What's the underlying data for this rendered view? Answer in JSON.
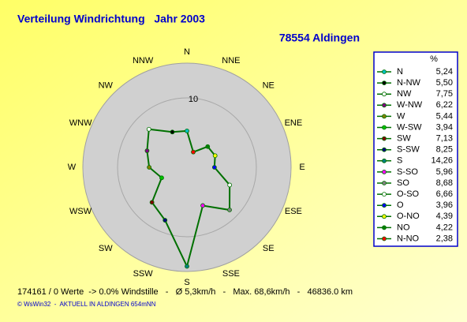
{
  "chart_data": {
    "type": "radar",
    "title": "Verteilung Windrichtung   Jahr 2003",
    "subtitle": "78554 Aldingen",
    "directions": [
      "N",
      "NNE",
      "NE",
      "ENE",
      "E",
      "ESE",
      "SE",
      "SSE",
      "S",
      "SSW",
      "SW",
      "WSW",
      "W",
      "WNW",
      "NW",
      "NNW"
    ],
    "rlim": [
      0,
      15
    ],
    "rticks": [
      10
    ],
    "legend_header": "%",
    "line_color": "#007000",
    "categories": [
      "N",
      "N-NW",
      "NW",
      "W-NW",
      "W",
      "W-SW",
      "SW",
      "S-SW",
      "S",
      "S-SO",
      "SO",
      "O-SO",
      "O",
      "O-NO",
      "NO",
      "N-NO"
    ],
    "values": [
      5.24,
      5.5,
      7.75,
      6.22,
      5.44,
      3.94,
      7.13,
      8.25,
      14.26,
      5.96,
      8.68,
      6.66,
      3.96,
      4.39,
      4.22,
      2.38
    ],
    "value_labels": [
      "5,24",
      "5,50",
      "7,75",
      "6,22",
      "5,44",
      "3,94",
      "7,13",
      "8,25",
      "14,26",
      "5,96",
      "8,68",
      "6,66",
      "3,96",
      "4,39",
      "4,22",
      "2,38"
    ],
    "colors": [
      "#00c0c0",
      "#000000",
      "#ffffff",
      "#800080",
      "#808000",
      "#00c000",
      "#800000",
      "#000080",
      "#008080",
      "#ff00ff",
      "#808080",
      "#ffffff",
      "#0000ff",
      "#ffff00",
      "#008000",
      "#ff0000"
    ],
    "footer": "174161 / 0 Werte  -> 0.0% Windstille   -   Ø 5,3km/h   -   Max. 68,6km/h   -   46836.0 km",
    "credit": "© WsWin32  -  AKTUELL IN ALDINGEN 654mNN"
  }
}
